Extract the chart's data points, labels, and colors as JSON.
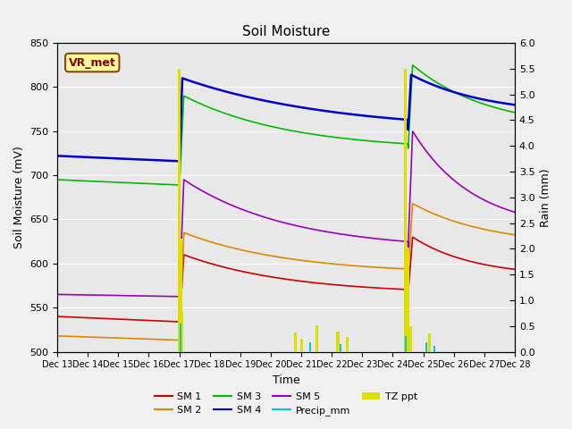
{
  "title": "Soil Moisture",
  "xlabel": "Time",
  "ylabel_left": "Soil Moisture (mV)",
  "ylabel_right": "Rain (mm)",
  "ylim_left": [
    500,
    850
  ],
  "ylim_right": [
    0.0,
    6.0
  ],
  "yticks_left": [
    500,
    550,
    600,
    650,
    700,
    750,
    800,
    850
  ],
  "yticks_right": [
    0.0,
    0.5,
    1.0,
    1.5,
    2.0,
    2.5,
    3.0,
    3.5,
    4.0,
    4.5,
    5.0,
    5.5,
    6.0
  ],
  "background_color": "#f0f0f0",
  "plot_bg_color": "#e8e8e8",
  "colors": {
    "SM1": "#cc0000",
    "SM2": "#dd8800",
    "SM3": "#00bb00",
    "SM4": "#0000cc",
    "SM5": "#9900bb",
    "Precip_mm": "#00cccc",
    "TZ_ppt": "#dddd00"
  },
  "annotation_box": {
    "text": "VR_met",
    "fontsize": 9,
    "color": "#8B0000",
    "boxcolor": "#ffff99",
    "edgecolor": "#8B4513"
  },
  "legend_labels": [
    "SM 1",
    "SM 2",
    "SM 3",
    "SM 4",
    "SM 5",
    "Precip_mm",
    "TZ ppt"
  ]
}
